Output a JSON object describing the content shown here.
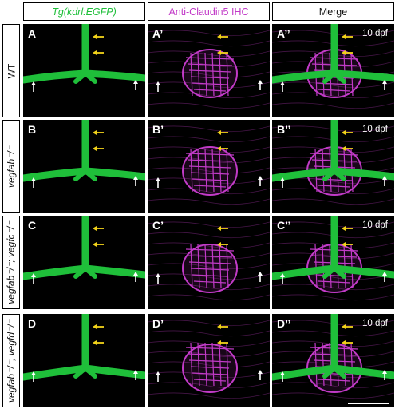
{
  "headers": {
    "col1": "Tg(kdrl:EGFP)",
    "col2": "Anti-Claudin5 IHC",
    "col3": "Merge"
  },
  "rows": [
    {
      "label": "WT",
      "panels": [
        "A",
        "A’",
        "A’’"
      ],
      "age": "10 dpf"
    },
    {
      "label": "vegfab⁻/⁻",
      "panels": [
        "B",
        "B’",
        "B’’"
      ],
      "age": "10 dpf"
    },
    {
      "label": "vegfab⁻/⁻; vegfc⁻/⁻",
      "panels": [
        "C",
        "C’",
        "C’’"
      ],
      "age": "10 dpf"
    },
    {
      "label": "vegfab⁻/⁻; vegfd⁻/⁻",
      "panels": [
        "D",
        "D’",
        "D’’"
      ],
      "age": "10 dpf"
    }
  ],
  "colors": {
    "egfp_green": "#1fbf3a",
    "claudin_magenta": "#c23bc8",
    "arrow_yellow": "#f2d21a",
    "arrow_white": "#ffffff"
  }
}
